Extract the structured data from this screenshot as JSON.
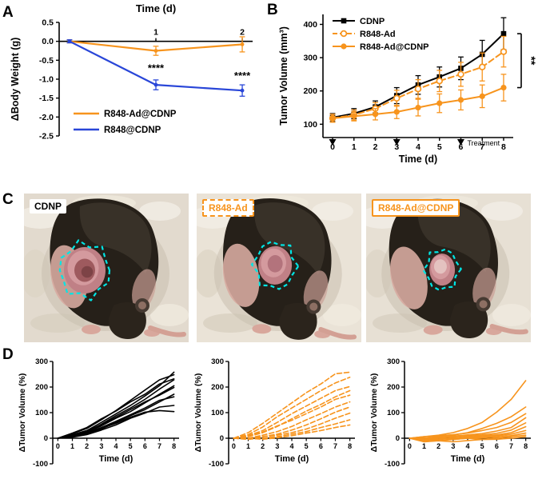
{
  "figure": {
    "panels": [
      "A",
      "B",
      "C",
      "D"
    ]
  },
  "colors": {
    "orange": "#F7941D",
    "blue": "#2946D8",
    "black": "#000000",
    "cyan": "#00E5E5"
  },
  "panel_c": {
    "outline_color": "#00E5E5",
    "photos": [
      {
        "label": "CDNP",
        "text_color": "#000000",
        "border_style": "none",
        "border_color": "none"
      },
      {
        "label": "R848-Ad",
        "text_color": "#F7941D",
        "border_style": "dashed",
        "border_color": "#F7941D"
      },
      {
        "label": "R848-Ad@CDNP",
        "text_color": "#F7941D",
        "border_style": "solid",
        "border_color": "#F7941D"
      }
    ]
  },
  "chart_data": [
    {
      "id": "body-weight",
      "panel": "A",
      "type": "line",
      "title": "Time (d)",
      "ylabel": "ΔBody Weight (g)",
      "xlim": [
        -0.12,
        2.12
      ],
      "ylim": [
        -2.5,
        0.5
      ],
      "x": [
        0,
        1,
        2
      ],
      "x_ticks": [
        1,
        2
      ],
      "y_ticks": [
        0.5,
        0,
        -0.5,
        -1,
        -1.5,
        -2,
        -2.5
      ],
      "series": [
        {
          "name": "R848-Ad@CDNP",
          "color": "#F7941D",
          "dash": "solid",
          "values": [
            0,
            -0.25,
            -0.08
          ],
          "errors": [
            0.04,
            0.12,
            0.2
          ]
        },
        {
          "name": "R848@CDNP",
          "color": "#2946D8",
          "dash": "solid",
          "values": [
            0,
            -1.15,
            -1.3
          ],
          "errors": [
            0.04,
            0.13,
            0.15
          ]
        }
      ],
      "annotations": [
        {
          "text": "****",
          "x": 1,
          "y": -0.8
        },
        {
          "text": "****",
          "x": 2,
          "y": -1.0
        }
      ],
      "legend_position": "bottom-left"
    },
    {
      "id": "tumor-volume",
      "panel": "B",
      "type": "line",
      "xlabel": "Time (d)",
      "ylabel": "Tumor Volume (mm³)",
      "xlim": [
        -0.45,
        8.45
      ],
      "ylim": [
        60,
        430
      ],
      "x": [
        0,
        1,
        2,
        3,
        4,
        5,
        6,
        7,
        8
      ],
      "x_ticks": [
        0,
        1,
        2,
        3,
        4,
        5,
        6,
        7,
        8
      ],
      "y_ticks": [
        100,
        200,
        300,
        400
      ],
      "series": [
        {
          "name": "CDNP",
          "color": "#000000",
          "dash": "solid",
          "marker": "square-filled",
          "values": [
            120,
            132,
            152,
            186,
            218,
            242,
            268,
            310,
            372
          ],
          "errors": [
            12,
            15,
            18,
            24,
            28,
            30,
            34,
            42,
            48
          ]
        },
        {
          "name": "R848-Ad",
          "color": "#F7941D",
          "dash": "dashed",
          "marker": "circle-open",
          "values": [
            118,
            128,
            147,
            178,
            206,
            230,
            250,
            272,
            318
          ],
          "errors": [
            12,
            15,
            18,
            24,
            28,
            32,
            36,
            42,
            46
          ]
        },
        {
          "name": "R848-Ad@CDNP",
          "color": "#F7941D",
          "dash": "solid",
          "marker": "circle-filled",
          "values": [
            118,
            124,
            130,
            137,
            150,
            163,
            173,
            184,
            210
          ],
          "errors": [
            12,
            14,
            17,
            20,
            25,
            28,
            30,
            34,
            40
          ]
        }
      ],
      "treatment": {
        "xs": [
          0,
          3,
          6
        ],
        "label": "Treatment"
      },
      "significance": {
        "text": "**"
      },
      "legend_position": "top-left"
    },
    {
      "id": "individual-tumor-cdnp",
      "panel": "D",
      "type": "line",
      "group": "CDNP",
      "xlabel": "Time (d)",
      "ylabel": "ΔTumor Volume (%)",
      "color": "#000000",
      "dash": "solid",
      "xlim": [
        -0.35,
        8.35
      ],
      "ylim": [
        -100,
        300
      ],
      "x": [
        0,
        1,
        2,
        3,
        4,
        5,
        6,
        7,
        8
      ],
      "x_ticks": [
        0,
        1,
        2,
        3,
        4,
        5,
        6,
        7,
        8
      ],
      "y_ticks": [
        -100,
        0,
        100,
        200,
        300
      ],
      "lines": [
        [
          0,
          12,
          30,
          62,
          95,
          128,
          165,
          205,
          258
        ],
        [
          0,
          18,
          38,
          72,
          108,
          148,
          188,
          228,
          248
        ],
        [
          0,
          8,
          26,
          55,
          88,
          118,
          152,
          192,
          228
        ],
        [
          0,
          20,
          42,
          76,
          106,
          142,
          172,
          212,
          232
        ],
        [
          0,
          10,
          24,
          48,
          78,
          104,
          138,
          172,
          205
        ],
        [
          0,
          14,
          30,
          52,
          82,
          112,
          142,
          168,
          198
        ],
        [
          0,
          6,
          16,
          36,
          62,
          88,
          112,
          142,
          172
        ],
        [
          0,
          10,
          22,
          42,
          66,
          92,
          118,
          148,
          162
        ],
        [
          0,
          4,
          14,
          32,
          52,
          78,
          98,
          122,
          128
        ],
        [
          0,
          6,
          18,
          38,
          58,
          82,
          102,
          108,
          104
        ]
      ]
    },
    {
      "id": "individual-tumor-r848-ad",
      "panel": "D",
      "type": "line",
      "group": "R848-Ad",
      "xlabel": "Time (d)",
      "ylabel": "ΔTumor Volume (%)",
      "color": "#F7941D",
      "dash": "dashed",
      "xlim": [
        -0.35,
        8.35
      ],
      "ylim": [
        -100,
        300
      ],
      "x": [
        0,
        1,
        2,
        3,
        4,
        5,
        6,
        7,
        8
      ],
      "x_ticks": [
        0,
        1,
        2,
        3,
        4,
        5,
        6,
        7,
        8
      ],
      "y_ticks": [
        -100,
        0,
        100,
        200,
        300
      ],
      "lines": [
        [
          0,
          22,
          58,
          98,
          138,
          178,
          212,
          252,
          258
        ],
        [
          0,
          14,
          44,
          84,
          118,
          152,
          186,
          216,
          238
        ],
        [
          0,
          10,
          30,
          62,
          96,
          126,
          156,
          186,
          202
        ],
        [
          0,
          6,
          22,
          46,
          76,
          106,
          132,
          162,
          186
        ],
        [
          0,
          8,
          24,
          48,
          70,
          96,
          122,
          152,
          168
        ],
        [
          0,
          0,
          12,
          26,
          46,
          72,
          96,
          122,
          142
        ],
        [
          0,
          -4,
          6,
          16,
          32,
          52,
          76,
          102,
          122
        ],
        [
          0,
          0,
          6,
          12,
          22,
          36,
          56,
          78,
          98
        ],
        [
          0,
          -4,
          0,
          6,
          16,
          26,
          42,
          56,
          72
        ],
        [
          0,
          0,
          -4,
          2,
          10,
          20,
          30,
          42,
          52
        ]
      ]
    },
    {
      "id": "individual-tumor-r848-ad-cdnp",
      "panel": "D",
      "type": "line",
      "group": "R848-Ad@CDNP",
      "xlabel": "Time (d)",
      "ylabel": "ΔTumor Volume (%)",
      "color": "#F7941D",
      "dash": "solid",
      "xlim": [
        -0.35,
        8.35
      ],
      "ylim": [
        -100,
        300
      ],
      "x": [
        0,
        1,
        2,
        3,
        4,
        5,
        6,
        7,
        8
      ],
      "x_ticks": [
        0,
        1,
        2,
        3,
        4,
        5,
        6,
        7,
        8
      ],
      "y_ticks": [
        -100,
        0,
        100,
        200,
        300
      ],
      "lines": [
        [
          0,
          6,
          12,
          22,
          38,
          62,
          102,
          152,
          225
        ],
        [
          0,
          0,
          6,
          12,
          22,
          38,
          58,
          84,
          122
        ],
        [
          0,
          6,
          9,
          14,
          20,
          30,
          42,
          62,
          96
        ],
        [
          0,
          0,
          5,
          8,
          13,
          18,
          28,
          42,
          80
        ],
        [
          0,
          -5,
          0,
          5,
          9,
          13,
          19,
          32,
          60
        ],
        [
          0,
          0,
          -5,
          0,
          5,
          9,
          13,
          22,
          45
        ],
        [
          0,
          -10,
          -5,
          0,
          2,
          5,
          9,
          16,
          30
        ],
        [
          0,
          0,
          0,
          -5,
          0,
          2,
          5,
          10,
          20
        ],
        [
          0,
          -5,
          -10,
          -5,
          0,
          -4,
          0,
          6,
          12
        ],
        [
          0,
          -14,
          -10,
          -14,
          -9,
          -5,
          -4,
          0,
          6
        ]
      ]
    }
  ]
}
